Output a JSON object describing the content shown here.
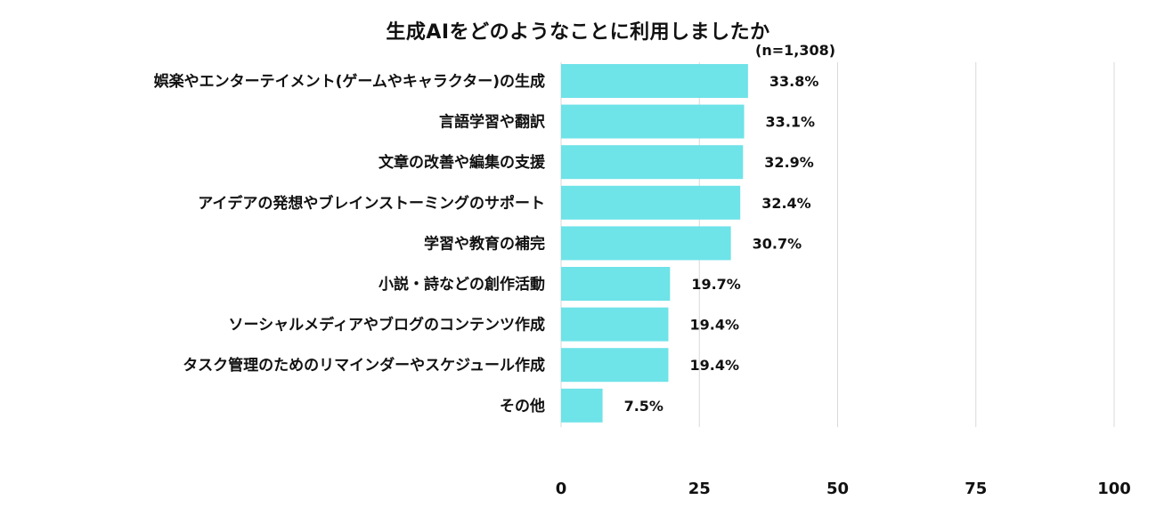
{
  "chart_data": {
    "type": "bar",
    "orientation": "horizontal",
    "title": "生成AIをどのようなことに利用しましたか",
    "subtitle": "(n=1,308)",
    "categories": [
      "娯楽やエンターテイメント(ゲームやキャラクター)の生成",
      "言語学習や翻訳",
      "文章の改善や編集の支援",
      "アイデアの発想やブレインストーミングのサポート",
      "学習や教育の補完",
      "小説・詩などの創作活動",
      "ソーシャルメディアやブログのコンテンツ作成",
      "タスク管理のためのリマインダーやスケジュール作成",
      "その他"
    ],
    "values": [
      33.8,
      33.1,
      32.9,
      32.4,
      30.7,
      19.7,
      19.4,
      19.4,
      7.5
    ],
    "value_labels": [
      "33.8%",
      "33.1%",
      "32.9%",
      "32.4%",
      "30.7%",
      "19.7%",
      "19.4%",
      "19.4%",
      "7.5%"
    ],
    "xlim": [
      0,
      100
    ],
    "xticks": [
      0,
      25,
      50,
      75,
      100
    ],
    "xtick_labels": [
      "0",
      "25",
      "50",
      "75",
      "100"
    ],
    "grid": "vertical",
    "bar_color": "#6EE3E8",
    "grid_color": "#D9D9D9"
  }
}
